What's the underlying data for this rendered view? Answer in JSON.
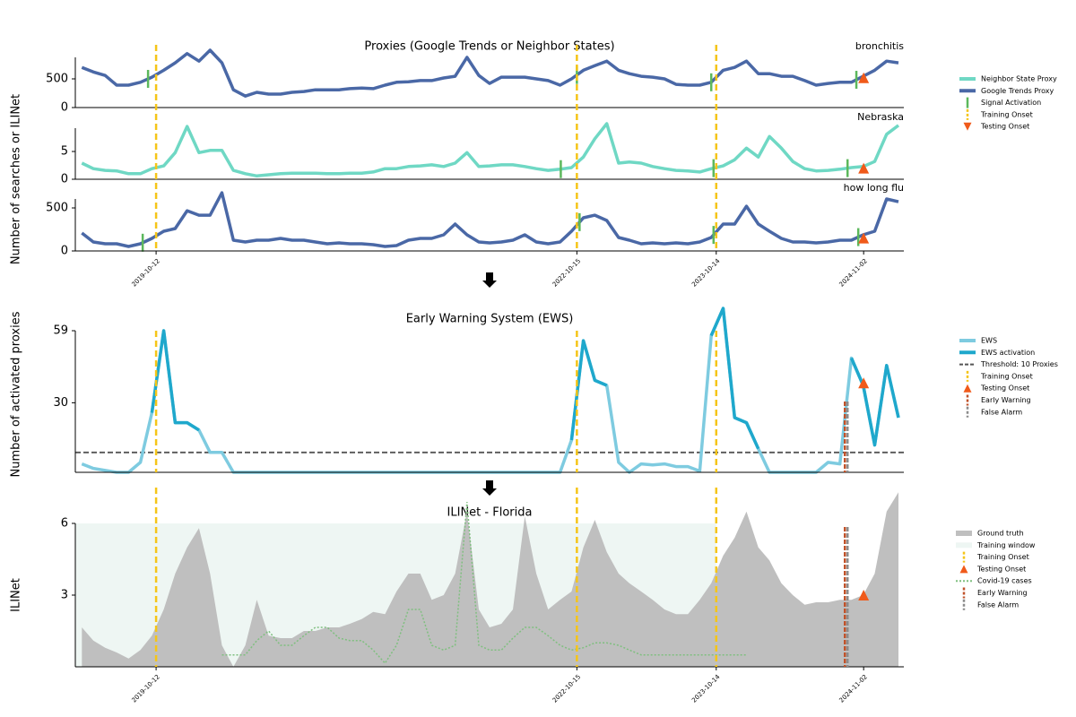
{
  "chart_data": [
    {
      "type": "line",
      "title": "Proxies (Google Trends or Neighbor States)",
      "ylabel": "Number of searches or ILINet",
      "xlim": [
        "2019-03-15",
        "2025-02-15"
      ],
      "xticks": [
        "2019-10-12",
        "2022-10-15",
        "2023-10-14",
        "2024-11-02"
      ],
      "x": [
        "2019-04-01",
        "2019-05-01",
        "2019-06-01",
        "2019-07-01",
        "2019-08-01",
        "2019-09-01",
        "2019-10-01",
        "2019-11-01",
        "2019-12-01",
        "2020-01-01",
        "2020-02-01",
        "2020-03-01",
        "2020-04-01",
        "2020-05-01",
        "2020-06-01",
        "2020-07-01",
        "2020-08-01",
        "2020-09-01",
        "2020-10-01",
        "2020-11-01",
        "2020-12-01",
        "2021-01-01",
        "2021-02-01",
        "2021-03-01",
        "2021-04-01",
        "2021-05-01",
        "2021-06-01",
        "2021-07-01",
        "2021-08-01",
        "2021-09-01",
        "2021-10-01",
        "2021-11-01",
        "2021-12-01",
        "2022-01-01",
        "2022-02-01",
        "2022-03-01",
        "2022-04-01",
        "2022-05-01",
        "2022-06-01",
        "2022-07-01",
        "2022-08-01",
        "2022-09-01",
        "2022-10-01",
        "2022-11-01",
        "2022-12-01",
        "2023-01-01",
        "2023-02-01",
        "2023-03-01",
        "2023-04-01",
        "2023-05-01",
        "2023-06-01",
        "2023-07-01",
        "2023-08-01",
        "2023-09-01",
        "2023-10-01",
        "2023-11-01",
        "2023-12-01",
        "2024-01-01",
        "2024-02-01",
        "2024-03-01",
        "2024-04-01",
        "2024-05-01",
        "2024-06-01",
        "2024-07-01",
        "2024-08-01",
        "2024-09-01",
        "2024-10-01",
        "2024-11-01",
        "2024-12-01",
        "2025-01-01",
        "2025-02-01"
      ],
      "training_onsets": [
        "2019-10-12",
        "2022-10-15",
        "2023-10-14"
      ],
      "training_color": "#f5c518",
      "testing_onset": "2024-11-02",
      "testing_color": "#f05a1a",
      "signal_color": "#5cb85c",
      "panels": [
        {
          "name": "bronchitis",
          "color": "#4a68a6",
          "ylim": [
            0,
            875
          ],
          "yticks": [
            0,
            500
          ],
          "testing_onset_value": 520,
          "signal_activations": [
            "2019-09-21",
            "2022-10-15",
            "2023-10-01",
            "2024-10-14"
          ],
          "values": [
            700,
            620,
            560,
            390,
            390,
            440,
            530,
            650,
            780,
            940,
            810,
            1000,
            780,
            310,
            200,
            265,
            235,
            235,
            265,
            280,
            310,
            310,
            310,
            330,
            340,
            330,
            390,
            440,
            450,
            470,
            470,
            515,
            545,
            875,
            560,
            420,
            530,
            530,
            530,
            500,
            470,
            390,
            500,
            650,
            730,
            810,
            650,
            590,
            545,
            530,
            500,
            405,
            390,
            390,
            440,
            650,
            700,
            810,
            590,
            590,
            545,
            545,
            470,
            390,
            420,
            440,
            440,
            545,
            650,
            810,
            780
          ]
        },
        {
          "name": "Nebraska",
          "color": "#6fd8c4",
          "ylim": [
            0,
            9.2
          ],
          "yticks": [
            0,
            5
          ],
          "testing_onset_value": 2.0,
          "signal_activations": [
            "2022-09-03",
            "2023-10-07",
            "2024-09-21"
          ],
          "values": [
            2.9,
            1.9,
            1.6,
            1.5,
            1.0,
            1.0,
            1.9,
            2.4,
            4.8,
            9.5,
            4.8,
            5.2,
            5.2,
            1.6,
            1.0,
            0.6,
            0.8,
            1.0,
            1.1,
            1.1,
            1.1,
            1.0,
            1.0,
            1.1,
            1.1,
            1.3,
            1.9,
            1.9,
            2.3,
            2.4,
            2.6,
            2.3,
            2.9,
            4.8,
            2.3,
            2.4,
            2.6,
            2.6,
            2.3,
            1.9,
            1.6,
            1.8,
            2.1,
            4.0,
            7.3,
            10,
            2.9,
            3.1,
            2.9,
            2.3,
            1.9,
            1.6,
            1.5,
            1.3,
            1.9,
            2.4,
            3.5,
            5.6,
            4.0,
            7.7,
            5.6,
            3.2,
            1.9,
            1.5,
            1.6,
            1.8,
            2.1,
            2.3,
            3.2,
            8.1,
            9.7
          ]
        },
        {
          "name": "how long flu",
          "color": "#4a68a6",
          "ylim": [
            0,
            604
          ],
          "yticks": [
            0,
            500
          ],
          "testing_onset_value": 150,
          "signal_activations": [
            "2019-09-07",
            "2022-10-22",
            "2023-10-07",
            "2024-10-19"
          ],
          "values": [
            208,
            104,
            83,
            83,
            52,
            83,
            146,
            229,
            260,
            468,
            416,
            416,
            676,
            125,
            104,
            125,
            125,
            146,
            125,
            125,
            104,
            83,
            94,
            83,
            83,
            73,
            52,
            62,
            125,
            146,
            146,
            187,
            312,
            187,
            104,
            94,
            104,
            125,
            187,
            104,
            83,
            104,
            229,
            385,
            416,
            354,
            156,
            125,
            83,
            94,
            83,
            94,
            83,
            104,
            156,
            312,
            312,
            520,
            312,
            229,
            146,
            104,
            104,
            94,
            104,
            125,
            125,
            187,
            229,
            604,
            572
          ]
        }
      ],
      "legend": [
        {
          "label": "Neighbor State Proxy",
          "color": "#6fd8c4",
          "marker": "line"
        },
        {
          "label": "Google Trends Proxy",
          "color": "#4a68a6",
          "marker": "line"
        },
        {
          "label": "Signal Activation",
          "color": "#5cb85c",
          "marker": "vline"
        },
        {
          "label": "Training Onset",
          "color": "#f5c518",
          "marker": "dashed-vline"
        },
        {
          "label": "Testing Onset",
          "color": "#f05a1a",
          "marker": "triangle-down"
        }
      ]
    },
    {
      "type": "line",
      "title": "Early Warning System (EWS)",
      "ylabel": "Number of activated proxies",
      "xlim": [
        "2019-03-15",
        "2025-02-15"
      ],
      "x": [
        "2019-04-01",
        "2019-05-01",
        "2019-06-01",
        "2019-07-01",
        "2019-08-01",
        "2019-09-01",
        "2019-10-01",
        "2019-11-01",
        "2019-12-01",
        "2020-01-01",
        "2020-02-01",
        "2020-03-01",
        "2020-04-01",
        "2020-05-01",
        "2020-06-01",
        "2020-07-01",
        "2020-08-01",
        "2020-09-01",
        "2020-10-01",
        "2020-11-01",
        "2020-12-01",
        "2021-01-01",
        "2021-02-01",
        "2021-03-01",
        "2021-04-01",
        "2021-05-01",
        "2021-06-01",
        "2021-07-01",
        "2021-08-01",
        "2021-09-01",
        "2021-10-01",
        "2021-11-01",
        "2021-12-01",
        "2022-01-01",
        "2022-02-01",
        "2022-03-01",
        "2022-04-01",
        "2022-05-01",
        "2022-06-01",
        "2022-07-01",
        "2022-08-01",
        "2022-09-01",
        "2022-10-01",
        "2022-11-01",
        "2022-12-01",
        "2023-01-01",
        "2023-02-01",
        "2023-03-01",
        "2023-04-01",
        "2023-05-01",
        "2023-06-01",
        "2023-07-01",
        "2023-08-01",
        "2023-09-01",
        "2023-10-01",
        "2023-11-01",
        "2023-12-01",
        "2024-01-01",
        "2024-02-01",
        "2024-03-01",
        "2024-04-01",
        "2024-05-01",
        "2024-06-01",
        "2024-07-01",
        "2024-08-01",
        "2024-09-01",
        "2024-10-01",
        "2024-11-01",
        "2024-12-01",
        "2025-01-01",
        "2025-02-01"
      ],
      "ylim": [
        2,
        59
      ],
      "yticks": [
        30,
        59
      ],
      "color": "#7ecbe0",
      "activation_color": "#1fa8cc",
      "threshold": 10,
      "threshold_color": "#555555",
      "values": [
        5.4,
        3.6,
        2.8,
        2,
        2,
        6,
        26,
        59,
        22,
        22,
        19,
        10,
        10,
        2,
        2,
        2,
        2,
        2,
        2,
        2,
        2,
        2,
        2,
        2,
        2,
        2,
        2,
        2,
        2,
        2,
        2,
        2,
        2,
        2,
        2,
        2,
        2,
        2,
        2,
        2,
        2,
        2,
        15,
        55,
        39,
        37,
        6,
        2,
        5.4,
        5,
        5.4,
        4.3,
        4.3,
        2.5,
        57,
        68,
        24,
        22,
        11.5,
        2,
        2,
        2,
        2,
        2,
        6,
        5.4,
        48,
        37,
        13,
        45,
        24
      ],
      "testing_onset_value": 38,
      "training_onsets": [
        "2019-10-12",
        "2022-10-15",
        "2023-10-14"
      ],
      "training_color": "#f5c518",
      "testing_onset": "2024-11-02",
      "testing_color": "#f05a1a",
      "early_warning": "2024-09-14",
      "early_warning_color": "#c0522a",
      "false_alarm": "2024-09-21",
      "false_alarm_color": "#8c8c8c",
      "legend": [
        {
          "label": "EWS",
          "color": "#7ecbe0",
          "marker": "line"
        },
        {
          "label": "EWS activation",
          "color": "#1fa8cc",
          "marker": "line"
        },
        {
          "label": "Threshold: 10 Proxies",
          "color": "#555555",
          "marker": "dashed-line"
        },
        {
          "label": "Training Onset",
          "color": "#f5c518",
          "marker": "dashed-vline"
        },
        {
          "label": "Testing Onset",
          "color": "#f05a1a",
          "marker": "triangle"
        },
        {
          "label": "Early Warning",
          "color": "#c0522a",
          "marker": "dashed-vline"
        },
        {
          "label": "False Alarm",
          "color": "#8c8c8c",
          "marker": "dashed-vline"
        }
      ]
    },
    {
      "type": "area",
      "title": "ILINet - Florida",
      "ylabel": "ILINet",
      "xlim": [
        "2019-03-15",
        "2025-02-15"
      ],
      "xticks": [
        "2019-10-12",
        "2022-10-15",
        "2023-10-14",
        "2024-11-02"
      ],
      "x": [
        "2019-04-01",
        "2019-05-01",
        "2019-06-01",
        "2019-07-01",
        "2019-08-01",
        "2019-09-01",
        "2019-10-01",
        "2019-11-01",
        "2019-12-01",
        "2020-01-01",
        "2020-02-01",
        "2020-03-01",
        "2020-04-01",
        "2020-05-01",
        "2020-06-01",
        "2020-07-01",
        "2020-08-01",
        "2020-09-01",
        "2020-10-01",
        "2020-11-01",
        "2020-12-01",
        "2021-01-01",
        "2021-02-01",
        "2021-03-01",
        "2021-04-01",
        "2021-05-01",
        "2021-06-01",
        "2021-07-01",
        "2021-08-01",
        "2021-09-01",
        "2021-10-01",
        "2021-11-01",
        "2021-12-01",
        "2022-01-01",
        "2022-02-01",
        "2022-03-01",
        "2022-04-01",
        "2022-05-01",
        "2022-06-01",
        "2022-07-01",
        "2022-08-01",
        "2022-09-01",
        "2022-10-01",
        "2022-11-01",
        "2022-12-01",
        "2023-01-01",
        "2023-02-01",
        "2023-03-01",
        "2023-04-01",
        "2023-05-01",
        "2023-06-01",
        "2023-07-01",
        "2023-08-01",
        "2023-09-01",
        "2023-10-01",
        "2023-11-01",
        "2023-12-01",
        "2024-01-01",
        "2024-02-01",
        "2024-03-01",
        "2024-04-01",
        "2024-05-01",
        "2024-06-01",
        "2024-07-01",
        "2024-08-01",
        "2024-09-01",
        "2024-10-01",
        "2024-11-01",
        "2024-12-01",
        "2025-01-01",
        "2025-02-01"
      ],
      "ylim": [
        0,
        6
      ],
      "yticks": [
        3,
        6
      ],
      "ground_truth": {
        "color": "#bfbfbf",
        "values": [
          1.65,
          1.1,
          0.8,
          0.6,
          0.35,
          0.7,
          1.3,
          2.4,
          3.9,
          5.0,
          5.8,
          3.9,
          0.9,
          0,
          0.9,
          2.8,
          1.3,
          1.2,
          1.2,
          1.5,
          1.5,
          1.65,
          1.65,
          1.8,
          2.0,
          2.3,
          2.2,
          3.15,
          3.9,
          3.9,
          2.8,
          3.0,
          3.9,
          6.5,
          2.4,
          1.65,
          1.8,
          2.4,
          6.3,
          3.9,
          2.4,
          2.8,
          3.15,
          5.0,
          6.15,
          4.8,
          3.9,
          3.5,
          3.15,
          2.8,
          2.4,
          2.2,
          2.2,
          2.8,
          3.5,
          4.65,
          5.4,
          6.5,
          5.0,
          4.45,
          3.5,
          3.0,
          2.6,
          2.7,
          2.7,
          2.8,
          2.8,
          3.0,
          3.9,
          6.5,
          7.3
        ]
      },
      "covid_cases": {
        "color": "#7fbf7f",
        "values": [
          null,
          null,
          null,
          null,
          null,
          null,
          null,
          null,
          null,
          null,
          null,
          null,
          0.5,
          0.5,
          0.5,
          1.1,
          1.5,
          0.9,
          0.9,
          1.3,
          1.65,
          1.65,
          1.2,
          1.1,
          1.1,
          0.7,
          0.15,
          0.9,
          2.4,
          2.4,
          0.9,
          0.7,
          0.9,
          6.9,
          0.9,
          0.7,
          0.7,
          1.2,
          1.65,
          1.65,
          1.3,
          0.9,
          0.7,
          0.8,
          1.0,
          1.0,
          0.9,
          0.7,
          0.5,
          0.5,
          0.5,
          0.5,
          0.5,
          0.5,
          0.5,
          0.5,
          0.5,
          0.5,
          null,
          null,
          null,
          null,
          null,
          null,
          null,
          null,
          null,
          null,
          null,
          null,
          null
        ]
      },
      "training_window": [
        "2019-03-15",
        "2023-10-14"
      ],
      "training_window_color": "#eef6f3",
      "testing_onset_value": 3.0,
      "training_onsets": [
        "2019-10-12",
        "2022-10-15",
        "2023-10-14"
      ],
      "training_color": "#f5c518",
      "testing_onset": "2024-11-02",
      "testing_color": "#f05a1a",
      "early_warning": "2024-09-14",
      "early_warning_color": "#c0522a",
      "false_alarm": "2024-09-21",
      "false_alarm_color": "#8c8c8c",
      "legend": [
        {
          "label": "Ground truth",
          "color": "#bfbfbf",
          "marker": "patch"
        },
        {
          "label": "Training window",
          "color": "#eef6f3",
          "marker": "patch"
        },
        {
          "label": "Training Onset",
          "color": "#f5c518",
          "marker": "dashed-vline"
        },
        {
          "label": "Testing Onset",
          "color": "#f05a1a",
          "marker": "triangle"
        },
        {
          "label": "Covid-19 cases",
          "color": "#7fbf7f",
          "marker": "dotted-line"
        },
        {
          "label": "Early Warning",
          "color": "#c0522a",
          "marker": "dashed-vline"
        },
        {
          "label": "False Alarm",
          "color": "#8c8c8c",
          "marker": "dashed-vline"
        }
      ]
    }
  ]
}
